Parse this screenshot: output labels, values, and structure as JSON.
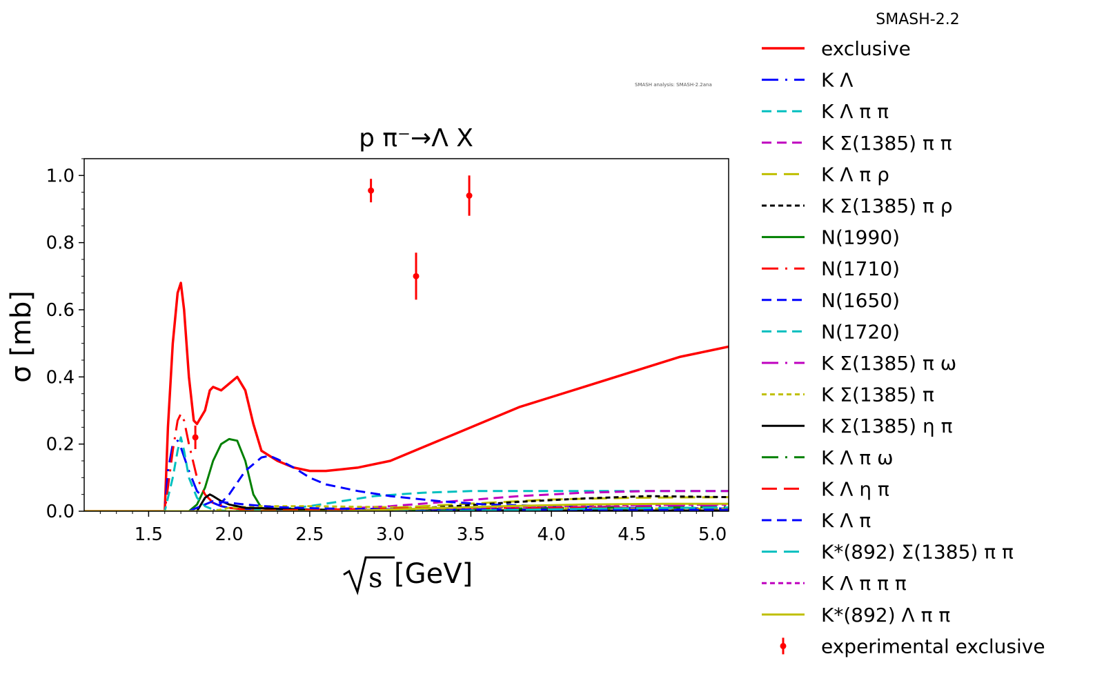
{
  "chart_data": {
    "type": "line",
    "title": "p π⁻→Λ X",
    "xlabel_symbol": "s",
    "xlabel_unit": "[GeV]",
    "ylabel": "σ [mb]",
    "annotation": "SMASH analysis: SMASH-2.2ana",
    "xlim": [
      1.1,
      5.1
    ],
    "ylim": [
      0.0,
      1.05
    ],
    "xticks": [
      1.5,
      2.0,
      2.5,
      3.0,
      3.5,
      4.0,
      4.5,
      5.0
    ],
    "xtick_labels": [
      "1.5",
      "2.0",
      "2.5",
      "3.0",
      "3.5",
      "4.0",
      "4.5",
      "5.0"
    ],
    "yticks": [
      0.0,
      0.2,
      0.4,
      0.6,
      0.8,
      1.0
    ],
    "ytick_labels": [
      "0.0",
      "0.2",
      "0.4",
      "0.6",
      "0.8",
      "1.0"
    ],
    "legend_title": "SMASH-2.2",
    "legend_position": "outside-right",
    "series": [
      {
        "name": "exclusive",
        "color": "#ff0000",
        "dash": "solid",
        "width": 3.5,
        "x": [
          1.1,
          1.6,
          1.62,
          1.65,
          1.68,
          1.7,
          1.72,
          1.75,
          1.78,
          1.8,
          1.85,
          1.88,
          1.9,
          1.95,
          2.0,
          2.05,
          2.1,
          2.15,
          2.2,
          2.3,
          2.4,
          2.5,
          2.6,
          2.7,
          2.8,
          3.0,
          3.2,
          3.4,
          3.6,
          3.8,
          4.0,
          4.2,
          4.4,
          4.6,
          4.8,
          5.0,
          5.1
        ],
        "y": [
          0.0,
          0.0,
          0.25,
          0.5,
          0.65,
          0.68,
          0.6,
          0.4,
          0.27,
          0.26,
          0.3,
          0.36,
          0.37,
          0.36,
          0.38,
          0.4,
          0.36,
          0.26,
          0.18,
          0.15,
          0.13,
          0.12,
          0.12,
          0.125,
          0.13,
          0.15,
          0.19,
          0.23,
          0.27,
          0.31,
          0.34,
          0.37,
          0.4,
          0.43,
          0.46,
          0.48,
          0.49
        ]
      },
      {
        "name": "K Λ",
        "color": "#0000ff",
        "dash": "long-dash-dot",
        "width": 3,
        "x": [
          1.1,
          1.6,
          1.62,
          1.65,
          1.68,
          1.7,
          1.75,
          1.8,
          1.85,
          1.9,
          1.95,
          2.0,
          2.1,
          2.5,
          3.0,
          5.1
        ],
        "y": [
          0.0,
          0.0,
          0.12,
          0.2,
          0.21,
          0.19,
          0.12,
          0.06,
          0.035,
          0.025,
          0.015,
          0.01,
          0.005,
          0.002,
          0.001,
          0.001
        ]
      },
      {
        "name": "K Λ π π",
        "color": "#00bfbf",
        "dash": "dash",
        "width": 3,
        "x": [
          1.1,
          2.0,
          2.3,
          2.5,
          2.7,
          2.9,
          3.2,
          3.5,
          3.8,
          4.2,
          4.6,
          5.1
        ],
        "y": [
          0.0,
          0.0,
          0.005,
          0.015,
          0.03,
          0.045,
          0.055,
          0.06,
          0.06,
          0.06,
          0.06,
          0.06
        ]
      },
      {
        "name": "K Σ(1385) π π",
        "color": "#bf00bf",
        "dash": "dash",
        "width": 3,
        "x": [
          1.1,
          2.3,
          2.6,
          3.0,
          3.4,
          3.8,
          4.2,
          4.6,
          5.1
        ],
        "y": [
          0.0,
          0.0,
          0.005,
          0.015,
          0.03,
          0.045,
          0.055,
          0.06,
          0.06
        ]
      },
      {
        "name": "K Λ π ρ",
        "color": "#bfbf00",
        "dash": "long-dash",
        "width": 3,
        "x": [
          1.1,
          2.4,
          2.8,
          3.2,
          3.6,
          4.0,
          4.5,
          5.1
        ],
        "y": [
          0.0,
          0.0,
          0.005,
          0.015,
          0.025,
          0.035,
          0.04,
          0.042
        ]
      },
      {
        "name": "K Σ(1385) π ρ",
        "color": "#000000",
        "dash": "short-dash",
        "width": 3,
        "x": [
          1.1,
          2.6,
          3.0,
          3.4,
          3.8,
          4.2,
          4.6,
          5.1
        ],
        "y": [
          0.0,
          0.0,
          0.005,
          0.015,
          0.028,
          0.038,
          0.045,
          0.042
        ]
      },
      {
        "name": "N(1990)",
        "color": "#008000",
        "dash": "solid",
        "width": 3,
        "x": [
          1.1,
          1.75,
          1.8,
          1.85,
          1.9,
          1.95,
          2.0,
          2.05,
          2.1,
          2.15,
          2.2,
          2.3,
          5.1
        ],
        "y": [
          0.0,
          0.0,
          0.02,
          0.07,
          0.15,
          0.2,
          0.215,
          0.21,
          0.15,
          0.05,
          0.01,
          0.0,
          0.0
        ]
      },
      {
        "name": "N(1710)",
        "color": "#ff0000",
        "dash": "long-dash-dot",
        "width": 3,
        "x": [
          1.1,
          1.6,
          1.65,
          1.68,
          1.7,
          1.72,
          1.75,
          1.8,
          1.85,
          1.9,
          2.0,
          2.2,
          5.1
        ],
        "y": [
          0.0,
          0.0,
          0.18,
          0.27,
          0.29,
          0.27,
          0.2,
          0.1,
          0.05,
          0.025,
          0.01,
          0.0,
          0.0
        ]
      },
      {
        "name": "N(1650)",
        "color": "#0000ff",
        "dash": "dash",
        "width": 3,
        "x": [
          1.1,
          1.9,
          2.0,
          2.1,
          2.2,
          2.25,
          2.3,
          2.4,
          2.5,
          2.6,
          2.8,
          3.0,
          3.3,
          3.6,
          4.0,
          4.5,
          5.1
        ],
        "y": [
          0.0,
          0.0,
          0.05,
          0.12,
          0.16,
          0.165,
          0.155,
          0.13,
          0.1,
          0.08,
          0.06,
          0.045,
          0.03,
          0.02,
          0.015,
          0.01,
          0.008
        ]
      },
      {
        "name": "N(1720)",
        "color": "#00bfbf",
        "dash": "dash",
        "width": 3,
        "x": [
          1.1,
          1.6,
          1.65,
          1.68,
          1.7,
          1.72,
          1.75,
          1.8,
          1.85,
          1.9,
          2.0,
          5.1
        ],
        "y": [
          0.0,
          0.0,
          0.1,
          0.18,
          0.22,
          0.18,
          0.1,
          0.04,
          0.015,
          0.005,
          0.0,
          0.0
        ]
      },
      {
        "name": "K Σ(1385) π ω",
        "color": "#bf00bf",
        "dash": "long-dash-dot",
        "width": 3,
        "x": [
          1.1,
          3.0,
          3.5,
          4.0,
          4.5,
          5.1
        ],
        "y": [
          0.0,
          0.0,
          0.005,
          0.01,
          0.015,
          0.018
        ]
      },
      {
        "name": "K Σ(1385) π",
        "color": "#bfbf00",
        "dash": "short-dash",
        "width": 3,
        "x": [
          1.1,
          1.9,
          2.0,
          2.2,
          2.5,
          3.0,
          3.5,
          4.0,
          4.5,
          5.1
        ],
        "y": [
          0.0,
          0.0,
          0.01,
          0.015,
          0.015,
          0.012,
          0.01,
          0.009,
          0.008,
          0.007
        ]
      },
      {
        "name": "K Σ(1385) η π",
        "color": "#000000",
        "dash": "solid",
        "width": 3,
        "x": [
          1.1,
          1.8,
          1.85,
          1.88,
          1.9,
          1.95,
          2.0,
          2.1,
          2.5,
          3.0,
          4.0,
          5.1
        ],
        "y": [
          0.0,
          0.0,
          0.04,
          0.05,
          0.045,
          0.03,
          0.02,
          0.01,
          0.005,
          0.003,
          0.002,
          0.002
        ]
      },
      {
        "name": "K Λ π ω",
        "color": "#008000",
        "dash": "long-dash-dot",
        "width": 3,
        "x": [
          1.1,
          2.8,
          3.3,
          3.8,
          4.3,
          5.1
        ],
        "y": [
          0.0,
          0.0,
          0.004,
          0.008,
          0.01,
          0.012
        ]
      },
      {
        "name": "K Λ η π",
        "color": "#ff0000",
        "dash": "long-dash",
        "width": 3,
        "x": [
          1.1,
          2.0,
          2.5,
          3.0,
          3.5,
          4.0,
          4.5,
          5.1
        ],
        "y": [
          0.0,
          0.0,
          0.004,
          0.008,
          0.01,
          0.01,
          0.01,
          0.01
        ]
      },
      {
        "name": "K Λ π",
        "color": "#0000ff",
        "dash": "dash",
        "width": 3,
        "x": [
          1.1,
          1.75,
          1.85,
          1.9,
          2.0,
          2.1,
          2.3,
          2.6,
          3.0,
          3.5,
          4.0,
          5.1
        ],
        "y": [
          0.0,
          0.0,
          0.02,
          0.03,
          0.025,
          0.02,
          0.012,
          0.008,
          0.006,
          0.005,
          0.005,
          0.004
        ]
      },
      {
        "name": "K*(892) Σ(1385) π π",
        "color": "#00bfbf",
        "dash": "long-dash",
        "width": 3,
        "x": [
          1.1,
          3.3,
          3.8,
          4.3,
          4.8,
          5.1
        ],
        "y": [
          0.0,
          0.0,
          0.004,
          0.008,
          0.01,
          0.011
        ]
      },
      {
        "name": "K Λ π π π",
        "color": "#bf00bf",
        "dash": "short-dash",
        "width": 3,
        "x": [
          1.1,
          2.6,
          3.0,
          3.5,
          4.0,
          4.5,
          5.1
        ],
        "y": [
          0.0,
          0.0,
          0.005,
          0.01,
          0.015,
          0.018,
          0.02
        ]
      },
      {
        "name": "K*(892) Λ π π",
        "color": "#bfbf00",
        "dash": "solid",
        "width": 3,
        "x": [
          1.1,
          2.7,
          3.2,
          3.7,
          4.2,
          4.7,
          5.1
        ],
        "y": [
          0.0,
          0.0,
          0.008,
          0.015,
          0.02,
          0.022,
          0.022
        ]
      }
    ],
    "experimental": {
      "name": "experimental exclusive",
      "color": "#ff0000",
      "points": [
        {
          "x": 1.79,
          "y": 0.22,
          "yerr": 0.035
        },
        {
          "x": 2.88,
          "y": 0.955,
          "yerr": 0.035
        },
        {
          "x": 3.16,
          "y": 0.7,
          "yerr": 0.07
        },
        {
          "x": 3.49,
          "y": 0.94,
          "yerr": 0.06
        }
      ]
    }
  }
}
